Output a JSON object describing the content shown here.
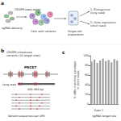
{
  "panel_a": {
    "label": "a",
    "sgrna": [
      "sgRNA delivery"
    ],
    "editor": [
      "CRISPR base editor"
    ],
    "cells": [
      "Cells with variants"
    ],
    "prep": [
      "Single-cell",
      "preparation"
    ],
    "readout_1": [
      "1. Endogenous",
      "(long read)"
    ],
    "readout_2": [
      "2. Gene expression",
      "(short read)"
    ]
  },
  "panel_b": {
    "label": "b",
    "title": [
      "CRISPR-introduced",
      "variants (10 target sites)"
    ],
    "gene": "PRCKT",
    "read": [
      "Long read"
    ],
    "length": [
      "400–600 bp"
    ],
    "footer": [
      "Variant sequences per UMI"
    ]
  },
  "chart_data": {
    "panel_label": "c",
    "type": "bar",
    "categories": [
      null,
      null,
      null,
      null,
      null,
      null,
      null,
      null,
      null,
      null
    ],
    "values": [
      88,
      92,
      85,
      90,
      94,
      89,
      91,
      86,
      93,
      90
    ],
    "color": "#9e9e9e",
    "ylabel": [
      "% UMIs matching genotype",
      "in short reads"
    ],
    "xlabel": "sgRNA target site",
    "annotation": "Exon 2",
    "ylim": [
      0,
      100
    ],
    "yticks": [
      0,
      20,
      40,
      60,
      80,
      100
    ],
    "grid": false
  }
}
